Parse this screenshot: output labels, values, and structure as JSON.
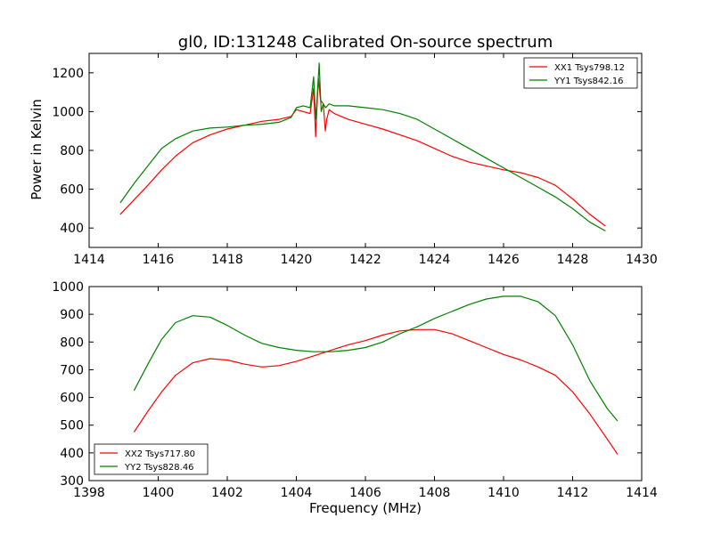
{
  "chart_data": [
    {
      "type": "line",
      "title": "gl0, ID:131248 Calibrated On-source spectrum",
      "xlabel": "",
      "ylabel": "Power in Kelvin",
      "xlim": [
        1414,
        1430
      ],
      "ylim": [
        300,
        1300
      ],
      "xticks": [
        1414,
        1416,
        1418,
        1420,
        1422,
        1424,
        1426,
        1428,
        1430
      ],
      "yticks": [
        400,
        600,
        800,
        1000,
        1200
      ],
      "legend": "top-right",
      "grid": false,
      "series": [
        {
          "name": "XX1 Tsys798.12",
          "color": "#ff0000",
          "x": [
            1414.9,
            1415.3,
            1415.7,
            1416.1,
            1416.5,
            1417.0,
            1417.5,
            1418.0,
            1418.5,
            1419.0,
            1419.5,
            1419.85,
            1420.0,
            1420.2,
            1420.4,
            1420.5,
            1420.56,
            1420.6,
            1420.64,
            1420.7,
            1420.78,
            1420.84,
            1420.88,
            1420.95,
            1421.1,
            1421.5,
            1422.0,
            1422.5,
            1423.0,
            1423.5,
            1424.0,
            1424.5,
            1425.0,
            1425.5,
            1426.0,
            1426.5,
            1427.0,
            1427.5,
            1428.0,
            1428.5,
            1428.95
          ],
          "y": [
            470,
            545,
            620,
            700,
            770,
            840,
            880,
            910,
            930,
            950,
            960,
            975,
            1010,
            1000,
            990,
            1120,
            870,
            1030,
            1170,
            1060,
            1040,
            900,
            960,
            1010,
            990,
            960,
            935,
            910,
            880,
            850,
            810,
            770,
            740,
            720,
            700,
            685,
            660,
            620,
            550,
            470,
            410
          ]
        },
        {
          "name": "YY1 Tsys842.16",
          "color": "#008000",
          "x": [
            1414.9,
            1415.3,
            1415.7,
            1416.1,
            1416.5,
            1417.0,
            1417.5,
            1418.0,
            1418.5,
            1419.0,
            1419.5,
            1419.85,
            1420.0,
            1420.2,
            1420.4,
            1420.5,
            1420.56,
            1420.6,
            1420.66,
            1420.72,
            1420.78,
            1420.85,
            1420.95,
            1421.1,
            1421.5,
            1422.0,
            1422.5,
            1423.0,
            1423.5,
            1424.0,
            1424.5,
            1425.0,
            1425.5,
            1426.0,
            1426.5,
            1427.0,
            1427.5,
            1428.0,
            1428.5,
            1428.95
          ],
          "y": [
            530,
            630,
            720,
            810,
            860,
            900,
            915,
            920,
            930,
            935,
            945,
            970,
            1020,
            1030,
            1020,
            1180,
            960,
            1060,
            1250,
            1000,
            1040,
            1020,
            1040,
            1030,
            1030,
            1020,
            1010,
            990,
            960,
            910,
            860,
            810,
            760,
            710,
            660,
            610,
            560,
            500,
            430,
            385
          ]
        }
      ]
    },
    {
      "type": "line",
      "title": "",
      "xlabel": "Frequency (MHz)",
      "ylabel": "",
      "xlim": [
        1398,
        1414
      ],
      "ylim": [
        300,
        1000
      ],
      "xticks": [
        1398,
        1400,
        1402,
        1404,
        1406,
        1408,
        1410,
        1412,
        1414
      ],
      "yticks": [
        300,
        400,
        500,
        600,
        700,
        800,
        900,
        1000
      ],
      "legend": "bottom-left",
      "grid": false,
      "series": [
        {
          "name": "XX2 Tsys717.80",
          "color": "#ff0000",
          "x": [
            1399.3,
            1399.7,
            1400.1,
            1400.5,
            1401.0,
            1401.5,
            1402.0,
            1402.5,
            1403.0,
            1403.5,
            1404.0,
            1404.5,
            1405.0,
            1405.5,
            1406.0,
            1406.5,
            1407.0,
            1407.5,
            1408.0,
            1408.5,
            1409.0,
            1409.5,
            1410.0,
            1410.5,
            1411.0,
            1411.5,
            1412.0,
            1412.5,
            1413.0,
            1413.3
          ],
          "y": [
            475,
            550,
            620,
            680,
            725,
            740,
            735,
            720,
            710,
            715,
            730,
            750,
            770,
            790,
            805,
            825,
            840,
            845,
            845,
            830,
            805,
            780,
            755,
            735,
            710,
            680,
            620,
            540,
            450,
            395
          ]
        },
        {
          "name": "YY2 Tsys828.46",
          "color": "#008000",
          "x": [
            1399.3,
            1399.7,
            1400.1,
            1400.5,
            1401.0,
            1401.5,
            1402.0,
            1402.5,
            1403.0,
            1403.5,
            1404.0,
            1404.5,
            1405.0,
            1405.5,
            1406.0,
            1406.5,
            1407.0,
            1407.5,
            1408.0,
            1408.5,
            1409.0,
            1409.5,
            1410.0,
            1410.5,
            1411.0,
            1411.5,
            1412.0,
            1412.5,
            1413.0,
            1413.3
          ],
          "y": [
            625,
            720,
            810,
            870,
            895,
            890,
            860,
            825,
            795,
            780,
            770,
            765,
            765,
            770,
            780,
            800,
            830,
            855,
            885,
            910,
            935,
            955,
            965,
            965,
            945,
            895,
            790,
            660,
            560,
            515
          ]
        }
      ]
    }
  ]
}
